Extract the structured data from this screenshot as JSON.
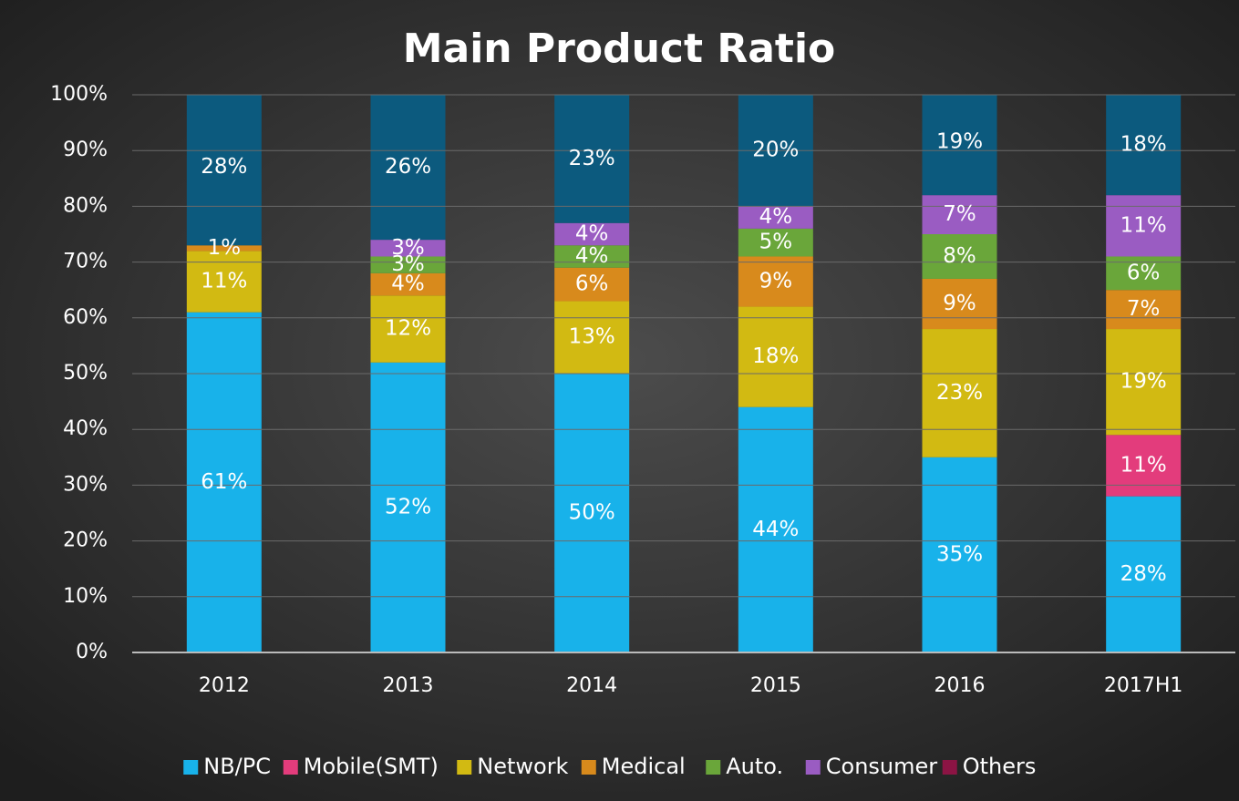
{
  "chart_data": {
    "type": "stacked_bar",
    "title": "Main Product Ratio",
    "categories": [
      "2012",
      "2013",
      "2014",
      "2015",
      "2016",
      "2017H1"
    ],
    "series": [
      {
        "name": "NB/PC",
        "color": "#18b2ea",
        "values": [
          61,
          52,
          50,
          44,
          35,
          28
        ],
        "value_labels": [
          "61%",
          "52%",
          "50%",
          "44%",
          "35%",
          "28%"
        ]
      },
      {
        "name": "Mobile(SMT)",
        "color": "#e33c7c",
        "values": [
          null,
          null,
          null,
          null,
          null,
          11
        ],
        "value_labels": [
          null,
          null,
          null,
          null,
          null,
          "11%"
        ]
      },
      {
        "name": "Network",
        "color": "#d2ba12",
        "values": [
          11,
          12,
          13,
          18,
          23,
          19
        ],
        "value_labels": [
          "11%",
          "12%",
          "13%",
          "18%",
          "23%",
          "19%"
        ]
      },
      {
        "name": "Medical",
        "color": "#d88a1c",
        "values": [
          1,
          4,
          6,
          9,
          9,
          7
        ],
        "value_labels": [
          "1%",
          "4%",
          "6%",
          "9%",
          "9%",
          "7%"
        ]
      },
      {
        "name": "Auto.",
        "color": "#6aa63a",
        "values": [
          null,
          3,
          4,
          5,
          8,
          6
        ],
        "value_labels": [
          null,
          "3%",
          "4%",
          "5%",
          "8%",
          "6%"
        ]
      },
      {
        "name": "Consumer",
        "color": "#9a5cc2",
        "values": [
          null,
          3,
          4,
          4,
          7,
          11
        ],
        "value_labels": [
          null,
          "3%",
          "4%",
          "4%",
          "7%",
          "11%"
        ]
      },
      {
        "name": "Others",
        "color": "#0c5a7e",
        "legend_color": "#8c1444",
        "values": [
          28,
          26,
          23,
          20,
          19,
          18
        ],
        "value_labels": [
          "28%",
          "26%",
          "23%",
          "20%",
          "19%",
          "18%"
        ]
      }
    ],
    "ylim": [
      0,
      100
    ],
    "yticks": [
      {
        "value": 0,
        "label": "0%"
      },
      {
        "value": 10,
        "label": "10%"
      },
      {
        "value": 20,
        "label": "20%"
      },
      {
        "value": 30,
        "label": "30%"
      },
      {
        "value": 40,
        "label": "40%"
      },
      {
        "value": 50,
        "label": "50%"
      },
      {
        "value": 60,
        "label": "60%"
      },
      {
        "value": 70,
        "label": "70%"
      },
      {
        "value": 80,
        "label": "80%"
      },
      {
        "value": 90,
        "label": "90%"
      },
      {
        "value": 100,
        "label": "100%"
      }
    ],
    "grid": true,
    "legend": "bottom"
  }
}
